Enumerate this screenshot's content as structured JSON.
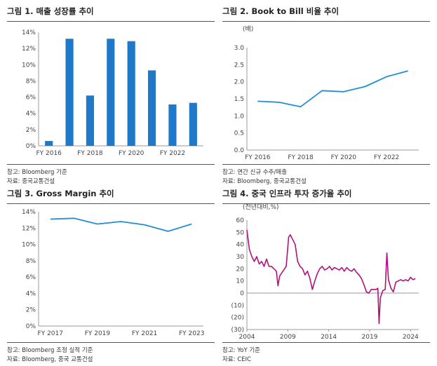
{
  "panels": [
    {
      "title": "그림 1. 매출 성장률 추이",
      "notes": [
        "참고: Bloomberg 기준",
        "자료: 중국교통건설"
      ]
    },
    {
      "title": "그림 2. Book to Bill 비율 추이",
      "notes": [
        "참고: 연간 신규 수주/매출",
        "자료: Bloomberg, 중국교통건설"
      ]
    },
    {
      "title": "그림 3. Gross Margin 추이",
      "notes": [
        "참고: Bloomberg 조정 실적 기준",
        "자료: Bloomberg, 중국 교통건설"
      ]
    },
    {
      "title": "그림 4. 중국 인프라 투자 증가율 추이",
      "notes": [
        "참고: YoY 기준",
        "자료: CEIC"
      ]
    }
  ],
  "chart_data": [
    {
      "type": "bar",
      "title": "그림 1. 매출 성장률 추이",
      "color": "#1f78c8",
      "x": [
        2016,
        2017,
        2018,
        2019,
        2020,
        2021,
        2022,
        2023
      ],
      "values": [
        0.6,
        13.2,
        6.2,
        13.2,
        12.9,
        9.3,
        5.1,
        5.3
      ],
      "ylim": [
        0,
        14
      ],
      "yticks": [
        0,
        2,
        4,
        6,
        8,
        10,
        12,
        14
      ],
      "ytick_labels": [
        "0%",
        "2%",
        "4%",
        "6%",
        "8%",
        "10%",
        "12%",
        "14%"
      ],
      "xtick_values": [
        2016,
        2018,
        2020,
        2022
      ],
      "xtick_labels": [
        "FY 2016",
        "FY 2018",
        "FY 2020",
        "FY 2022"
      ]
    },
    {
      "type": "line",
      "title": "그림 2. Book to Bill 비율 추이",
      "ylabel": "(배)",
      "color": "#1f8ed6",
      "x": [
        2016,
        2017,
        2018,
        2019,
        2020,
        2021,
        2022,
        2023
      ],
      "values": [
        1.43,
        1.4,
        1.27,
        1.74,
        1.71,
        1.86,
        2.15,
        2.32
      ],
      "ylim": [
        0,
        3.0
      ],
      "yticks": [
        0,
        0.5,
        1.0,
        1.5,
        2.0,
        2.5,
        3.0
      ],
      "ytick_labels": [
        "0.0",
        "0.5",
        "1.0",
        "1.5",
        "2.0",
        "2.5",
        "3.0"
      ],
      "xtick_values": [
        2016,
        2018,
        2020,
        2022
      ],
      "xtick_labels": [
        "FY 2016",
        "FY 2018",
        "FY 2020",
        "FY 2022"
      ]
    },
    {
      "type": "line",
      "title": "그림 3. Gross Margin 추이",
      "color": "#1f8ed6",
      "x": [
        2017,
        2018,
        2019,
        2020,
        2021,
        2022,
        2023
      ],
      "values": [
        13.1,
        13.2,
        12.5,
        12.8,
        12.4,
        11.6,
        12.5
      ],
      "ylim": [
        0,
        14
      ],
      "yticks": [
        0,
        2,
        4,
        6,
        8,
        10,
        12,
        14
      ],
      "ytick_labels": [
        "0%",
        "2%",
        "4%",
        "6%",
        "8%",
        "10%",
        "12%",
        "14%"
      ],
      "xtick_values": [
        2017,
        2019,
        2021,
        2023
      ],
      "xtick_labels": [
        "FY 2017",
        "FY 2019",
        "FY 2021",
        "FY 2023"
      ]
    },
    {
      "type": "line",
      "title": "그림 4. 중국 인프라 투자 증가율 추이",
      "ylabel": "(전년대비,%)",
      "color": "#b0117e",
      "points": [
        [
          2004.0,
          52
        ],
        [
          2004.3,
          36
        ],
        [
          2004.6,
          30
        ],
        [
          2004.9,
          26
        ],
        [
          2005.2,
          30
        ],
        [
          2005.5,
          24
        ],
        [
          2005.8,
          26
        ],
        [
          2006.1,
          22
        ],
        [
          2006.4,
          28
        ],
        [
          2006.7,
          22
        ],
        [
          2007.0,
          22
        ],
        [
          2007.3,
          20
        ],
        [
          2007.6,
          18
        ],
        [
          2007.8,
          6
        ],
        [
          2008.0,
          14
        ],
        [
          2008.4,
          18
        ],
        [
          2008.8,
          22
        ],
        [
          2009.1,
          46
        ],
        [
          2009.3,
          48
        ],
        [
          2009.6,
          44
        ],
        [
          2009.9,
          40
        ],
        [
          2010.2,
          26
        ],
        [
          2010.5,
          22
        ],
        [
          2010.8,
          20
        ],
        [
          2011.1,
          15
        ],
        [
          2011.4,
          18
        ],
        [
          2011.7,
          12
        ],
        [
          2012.0,
          3
        ],
        [
          2012.3,
          10
        ],
        [
          2012.6,
          16
        ],
        [
          2012.9,
          20
        ],
        [
          2013.2,
          22
        ],
        [
          2013.5,
          19
        ],
        [
          2013.8,
          20
        ],
        [
          2014.1,
          22
        ],
        [
          2014.4,
          19
        ],
        [
          2014.7,
          21
        ],
        [
          2015.0,
          20
        ],
        [
          2015.3,
          19
        ],
        [
          2015.6,
          21
        ],
        [
          2015.9,
          18
        ],
        [
          2016.2,
          21
        ],
        [
          2016.5,
          19
        ],
        [
          2016.8,
          18
        ],
        [
          2017.1,
          20
        ],
        [
          2017.4,
          17
        ],
        [
          2017.7,
          15
        ],
        [
          2018.0,
          12
        ],
        [
          2018.3,
          7
        ],
        [
          2018.6,
          1
        ],
        [
          2018.9,
          0
        ],
        [
          2019.2,
          3
        ],
        [
          2019.5,
          3
        ],
        [
          2019.8,
          3
        ],
        [
          2020.0,
          4
        ],
        [
          2020.15,
          -25
        ],
        [
          2020.3,
          -4
        ],
        [
          2020.6,
          2
        ],
        [
          2020.9,
          3
        ],
        [
          2021.1,
          33
        ],
        [
          2021.3,
          11
        ],
        [
          2021.6,
          4
        ],
        [
          2021.9,
          1
        ],
        [
          2022.2,
          9
        ],
        [
          2022.5,
          10
        ],
        [
          2022.8,
          11
        ],
        [
          2023.1,
          10
        ],
        [
          2023.4,
          11
        ],
        [
          2023.7,
          10
        ],
        [
          2024.0,
          13
        ],
        [
          2024.3,
          11
        ],
        [
          2024.6,
          12
        ]
      ],
      "ylim": [
        -30,
        60
      ],
      "yticks": [
        -30,
        -20,
        -10,
        0,
        10,
        20,
        30,
        40,
        50,
        60
      ],
      "ytick_labels": [
        "(30)",
        "(20)",
        "(10)",
        "0",
        "10",
        "20",
        "30",
        "40",
        "50",
        "60"
      ],
      "xlim": [
        2004,
        2025
      ],
      "xtick_values": [
        2004,
        2009,
        2014,
        2019,
        2024
      ],
      "xtick_labels": [
        "2004",
        "2009",
        "2014",
        "2019",
        "2024"
      ]
    }
  ]
}
